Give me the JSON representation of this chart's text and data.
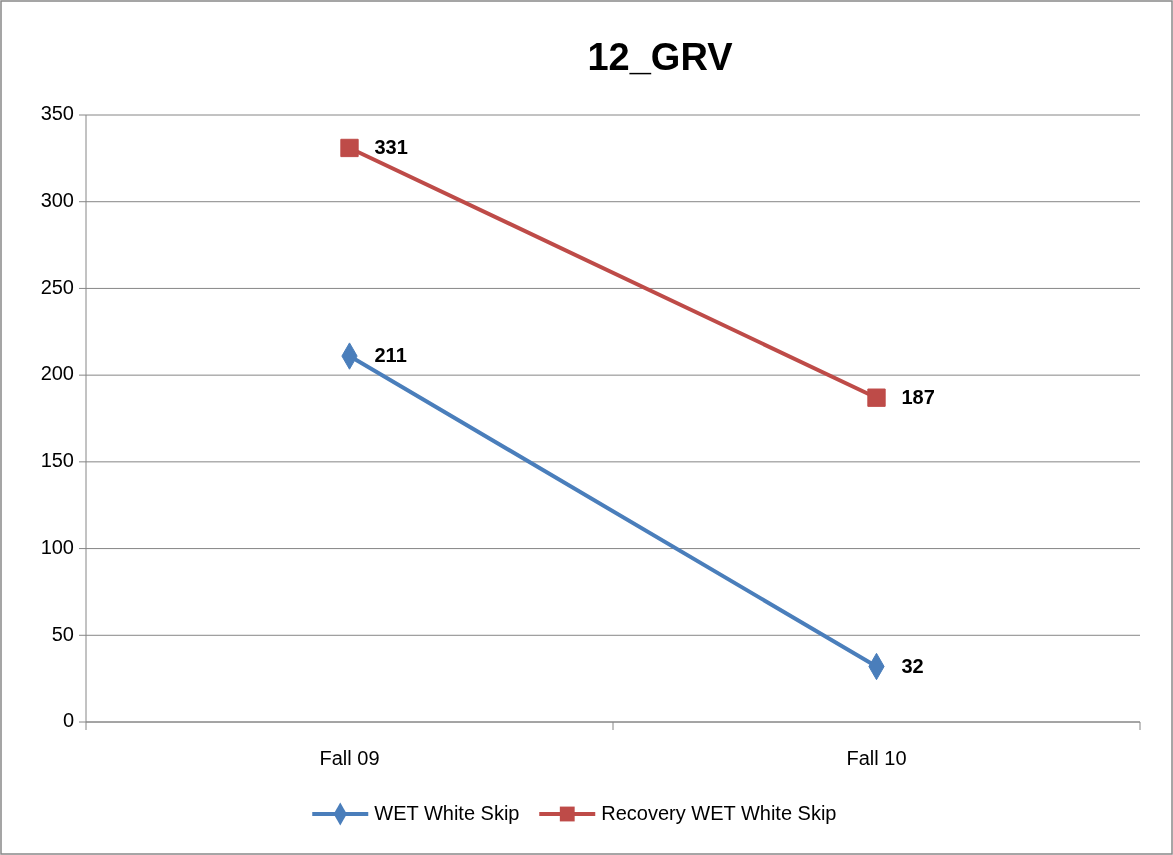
{
  "chart_data": {
    "type": "line",
    "title": "12_GRV",
    "categories": [
      "Fall 09",
      "Fall 10"
    ],
    "series": [
      {
        "name": "WET White Skip",
        "color": "#4a7ebb",
        "values": [
          211,
          32
        ],
        "marker": "diamond"
      },
      {
        "name": "Recovery WET White Skip",
        "color": "#be4b48",
        "values": [
          331,
          187
        ],
        "marker": "square"
      }
    ],
    "ylim": [
      0,
      350
    ],
    "yticks": [
      0,
      50,
      100,
      150,
      200,
      250,
      300,
      350
    ],
    "grid": "y",
    "legend": "bottom",
    "data_labels": true,
    "line_style": "solid"
  }
}
